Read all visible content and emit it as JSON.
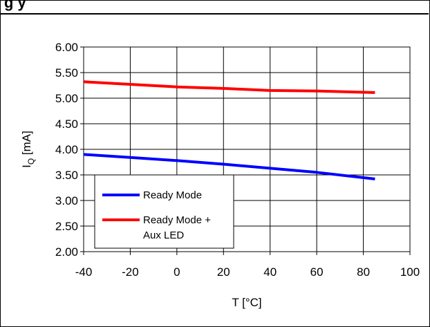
{
  "header": {
    "title_fragment": "g                                                                              y"
  },
  "chart_data": {
    "type": "line",
    "title": "",
    "xlabel": "T [°C]",
    "ylabel": "I_Q [mA]",
    "xlim": [
      -40,
      100
    ],
    "ylim": [
      2.0,
      6.0
    ],
    "x_ticks": [
      "-40",
      "-20",
      "0",
      "20",
      "40",
      "60",
      "80",
      "100"
    ],
    "y_ticks": [
      "2.00",
      "2.50",
      "3.00",
      "3.50",
      "4.00",
      "4.50",
      "5.00",
      "5.50",
      "6.00"
    ],
    "grid": true,
    "legend_position": "bottom-left",
    "series": [
      {
        "name": "Ready Mode",
        "color": "#0000ff",
        "points": [
          [
            -40,
            3.9
          ],
          [
            -20,
            3.84
          ],
          [
            0,
            3.78
          ],
          [
            20,
            3.71
          ],
          [
            40,
            3.63
          ],
          [
            60,
            3.55
          ],
          [
            85,
            3.42
          ]
        ]
      },
      {
        "name": "Ready Mode + Aux LED",
        "legend_lines": [
          "Ready Mode +",
          "Aux LED"
        ],
        "color": "#ff0000",
        "points": [
          [
            -40,
            5.32
          ],
          [
            -20,
            5.27
          ],
          [
            0,
            5.22
          ],
          [
            20,
            5.19
          ],
          [
            40,
            5.15
          ],
          [
            60,
            5.14
          ],
          [
            85,
            5.11
          ]
        ]
      }
    ]
  }
}
